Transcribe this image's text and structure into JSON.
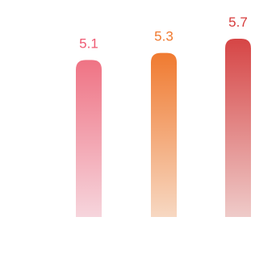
{
  "chart_data": {
    "type": "bar",
    "title": "",
    "xlabel": "",
    "ylabel": "",
    "categories": [
      "",
      "",
      ""
    ],
    "values": [
      5.1,
      5.3,
      5.7
    ],
    "value_labels": [
      "5.1",
      "5.3",
      "5.7"
    ],
    "colors": [
      {
        "top": "#ef7384",
        "bottom": "#f7e4ea",
        "label": "#ef5a73"
      },
      {
        "top": "#f07a30",
        "bottom": "#f8e6d8",
        "label": "#f07a30"
      },
      {
        "top": "#d64545",
        "bottom": "#f2dddb",
        "label": "#d63b3b"
      }
    ],
    "ylim": [
      0,
      5.7
    ],
    "grid": false,
    "legend": "none"
  }
}
